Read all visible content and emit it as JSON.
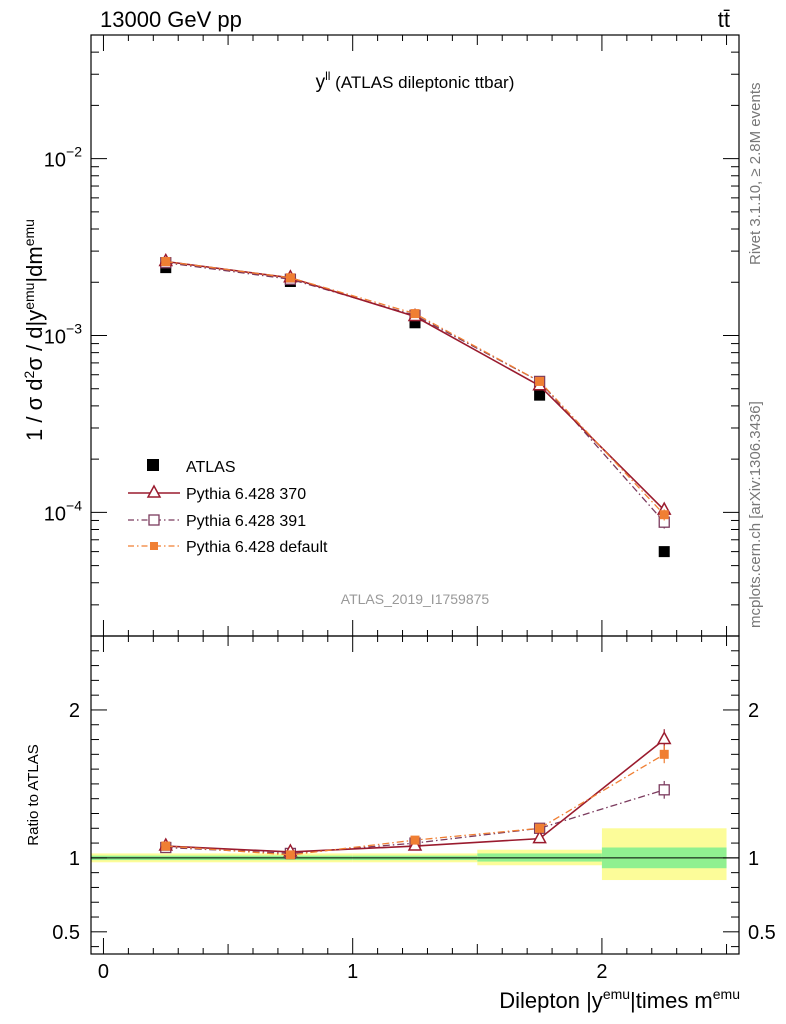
{
  "header": {
    "energy_label": "13000 GeV pp",
    "process_label": "tt̄"
  },
  "side_labels": {
    "rivet": "Rivet 3.1.10, ≥ 2.8M events",
    "mcplots": "mcplots.cern.ch [arXiv:1306.3436]"
  },
  "analysis_id": "ATLAS_2019_I1759875",
  "chart_data": [
    {
      "type": "scatter",
      "panel": "main",
      "title_main": "y",
      "title_sup": "ll",
      "title_rest": " (ATLAS dileptonic ttbar)",
      "ylabel": {
        "prefix": "1 / σ  d",
        "sup1": "2",
        "mid1": "σ / d|y",
        "sup2": "emu",
        "mid2": "|dm",
        "sup3": "emu"
      },
      "yscale": "log",
      "ylim": [
        2e-05,
        0.05
      ],
      "xlim": [
        -0.05,
        2.55
      ],
      "y_ticks": [
        {
          "value": 0.01,
          "base": "10",
          "exp": "−2"
        },
        {
          "value": 0.001,
          "base": "10",
          "exp": "−3"
        },
        {
          "value": 0.0001,
          "base": "10",
          "exp": "−4"
        }
      ],
      "legend": {
        "placement": "lower-left",
        "entries": [
          "ATLAS",
          "Pythia 6.428 370",
          "Pythia 6.428 391",
          "Pythia 6.428 default"
        ]
      },
      "series": [
        {
          "name": "ATLAS",
          "color": "#000000",
          "marker": "filled-square",
          "x": [
            0.25,
            0.75,
            1.25,
            1.75,
            2.25
          ],
          "y": [
            0.00242,
            0.00202,
            0.00118,
            0.00046,
            6e-05
          ]
        },
        {
          "name": "Pythia 6.428 370",
          "color": "#9a1b2e",
          "marker": "open-triangle",
          "line": "solid",
          "x": [
            0.25,
            0.75,
            1.25,
            1.75,
            2.25
          ],
          "y": [
            0.00262,
            0.00212,
            0.00128,
            0.00052,
            0.000103
          ],
          "err": [
            5e-05,
            4e-05,
            3e-05,
            2e-05,
            8e-06
          ]
        },
        {
          "name": "Pythia 6.428 391",
          "color": "#7b3b5e",
          "marker": "open-square",
          "line": "dashdot",
          "x": [
            0.25,
            0.75,
            1.25,
            1.75,
            2.25
          ],
          "y": [
            0.00258,
            0.00208,
            0.0013,
            0.00055,
            8.8e-05
          ],
          "err": [
            5e-05,
            4e-05,
            3e-05,
            2e-05,
            7e-06
          ]
        },
        {
          "name": "Pythia 6.428 default",
          "color": "#f07f33",
          "marker": "filled-square",
          "line": "dashdot",
          "x": [
            0.25,
            0.75,
            1.25,
            1.75,
            2.25
          ],
          "y": [
            0.00262,
            0.00212,
            0.00133,
            0.00055,
            9.7e-05
          ],
          "err": [
            5e-05,
            4e-05,
            3e-05,
            2e-05,
            7e-06
          ]
        }
      ]
    },
    {
      "type": "scatter",
      "panel": "ratio",
      "ylabel": "Ratio to ATLAS",
      "xlabel": {
        "prefix": "Dilepton |y",
        "sup1": "emu",
        "mid": "|times m",
        "sup2": "emu"
      },
      "ylim": [
        0.35,
        2.5
      ],
      "xlim": [
        -0.05,
        2.55
      ],
      "x_ticks": [
        0,
        1,
        2
      ],
      "y_ticks": [
        {
          "value": 0.5,
          "label": "0.5"
        },
        {
          "value": 1,
          "label": "1"
        },
        {
          "value": 2,
          "label": "2"
        }
      ],
      "bands": [
        {
          "x0": -0.05,
          "x1": 1.0,
          "inner": [
            0.985,
            1.015
          ],
          "outer": [
            0.97,
            1.03
          ]
        },
        {
          "x0": 1.0,
          "x1": 1.5,
          "inner": [
            0.985,
            1.015
          ],
          "outer": [
            0.97,
            1.03
          ]
        },
        {
          "x0": 1.5,
          "x1": 2.0,
          "inner": [
            0.975,
            1.03
          ],
          "outer": [
            0.95,
            1.055
          ]
        },
        {
          "x0": 2.0,
          "x1": 2.5,
          "inner": [
            0.93,
            1.07
          ],
          "outer": [
            0.85,
            1.2
          ]
        }
      ],
      "band_colors": {
        "inner": "#90f090",
        "outer": "#fcfc99"
      },
      "series": [
        {
          "name": "Pythia 6.428 370",
          "color": "#9a1b2e",
          "marker": "open-triangle",
          "line": "solid",
          "x": [
            0.25,
            0.75,
            1.25,
            1.75,
            2.25
          ],
          "y": [
            1.08,
            1.04,
            1.08,
            1.13,
            1.8
          ],
          "err": [
            0.02,
            0.02,
            0.02,
            0.03,
            0.07
          ]
        },
        {
          "name": "Pythia 6.428 391",
          "color": "#7b3b5e",
          "marker": "open-square",
          "line": "dashdot",
          "x": [
            0.25,
            0.75,
            1.25,
            1.75,
            2.25
          ],
          "y": [
            1.07,
            1.03,
            1.1,
            1.2,
            1.46
          ],
          "err": [
            0.02,
            0.02,
            0.02,
            0.03,
            0.06
          ]
        },
        {
          "name": "Pythia 6.428 default",
          "color": "#f07f33",
          "marker": "filled-square",
          "line": "dashdot",
          "x": [
            0.25,
            0.75,
            1.25,
            1.75,
            2.25
          ],
          "y": [
            1.08,
            1.02,
            1.12,
            1.2,
            1.7
          ],
          "err": [
            0.02,
            0.02,
            0.02,
            0.03,
            0.06
          ]
        }
      ]
    }
  ]
}
